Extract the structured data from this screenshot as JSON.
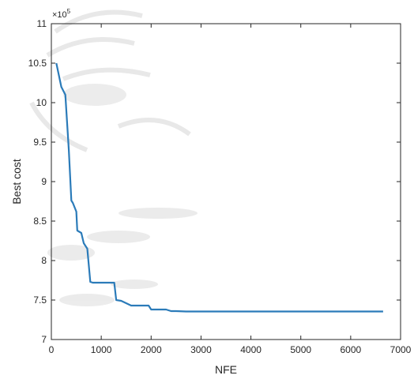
{
  "chart_data": {
    "type": "line",
    "title": "",
    "xlabel": "NFE",
    "ylabel": "Best cost",
    "y_exponent_label": "×10",
    "y_exponent_power": "5",
    "xlim": [
      0,
      7000
    ],
    "ylim": [
      7,
      11
    ],
    "xticks": [
      0,
      1000,
      2000,
      3000,
      4000,
      5000,
      6000,
      7000
    ],
    "yticks": [
      7,
      7.5,
      8,
      8.5,
      9,
      9.5,
      10,
      10.5,
      11
    ],
    "xtick_labels": [
      "0",
      "1000",
      "2000",
      "3000",
      "4000",
      "5000",
      "6000",
      "7000"
    ],
    "ytick_labels": [
      "7",
      "7.5",
      "8",
      "8.5",
      "9",
      "9.5",
      "10",
      "10.5",
      "11"
    ],
    "grid": false,
    "line_color": "#2b7bb9",
    "series": [
      {
        "x": [
          100,
          200,
          280,
          350,
          400,
          430,
          500,
          520,
          600,
          650,
          720,
          780,
          830,
          900,
          1000,
          1100,
          1200,
          1260,
          1300,
          1400,
          1500,
          1600,
          1800,
          1950,
          2000,
          2100,
          2300,
          2400,
          2500,
          2700,
          3000,
          4000,
          5000,
          6000,
          6650
        ],
        "y": [
          10.5,
          10.2,
          10.1,
          9.4,
          8.76,
          8.73,
          8.62,
          8.38,
          8.35,
          8.22,
          8.15,
          7.73,
          7.72,
          7.72,
          7.72,
          7.72,
          7.72,
          7.72,
          7.5,
          7.49,
          7.46,
          7.43,
          7.43,
          7.43,
          7.38,
          7.38,
          7.38,
          7.36,
          7.36,
          7.355,
          7.355,
          7.355,
          7.355,
          7.355,
          7.355
        ]
      }
    ]
  },
  "colors": {
    "axis": "#262626",
    "watermark": "#cfcfcf"
  }
}
